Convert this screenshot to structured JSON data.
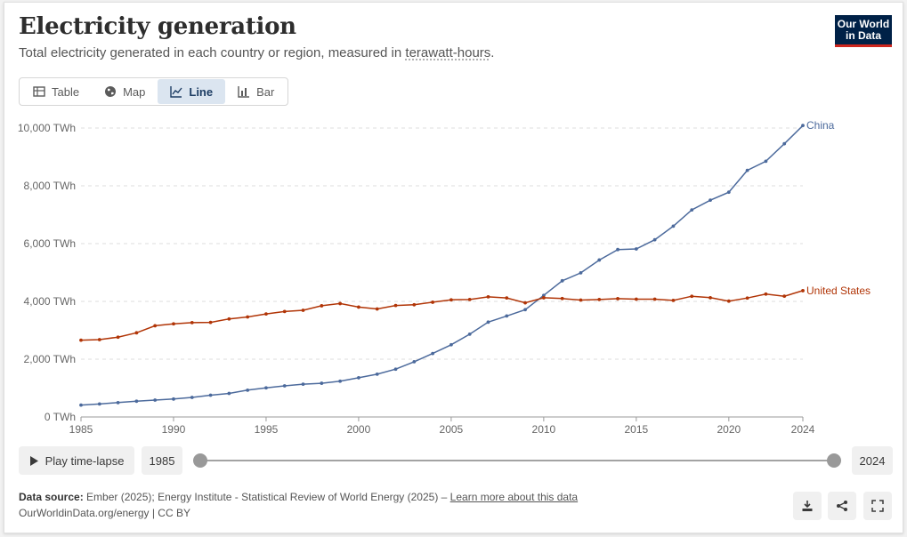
{
  "header": {
    "title": "Electricity generation",
    "subtitle_prefix": "Total electricity generated in each country or region, measured in ",
    "subtitle_unit": "terawatt-hours",
    "subtitle_suffix": ".",
    "logo_line1": "Our World",
    "logo_line2": "in Data"
  },
  "tabs": [
    {
      "label": "Table",
      "icon": "table-icon"
    },
    {
      "label": "Map",
      "icon": "globe-icon"
    },
    {
      "label": "Line",
      "icon": "line-chart-icon",
      "active": true
    },
    {
      "label": "Bar",
      "icon": "bar-chart-icon"
    }
  ],
  "chart_data": {
    "type": "line",
    "title": "Electricity generation",
    "ylabel": "TWh",
    "ylim": [
      0,
      10000
    ],
    "xlim": [
      1985,
      2024
    ],
    "y_ticks": [
      0,
      2000,
      4000,
      6000,
      8000,
      10000
    ],
    "y_tick_labels": [
      "0 TWh",
      "2,000 TWh",
      "4,000 TWh",
      "6,000 TWh",
      "8,000 TWh",
      "10,000 TWh"
    ],
    "x_ticks": [
      1985,
      1990,
      1995,
      2000,
      2005,
      2010,
      2015,
      2020,
      2024
    ],
    "x_tick_labels": [
      "1985",
      "1990",
      "1995",
      "2000",
      "2005",
      "2010",
      "2015",
      "2020",
      "2024"
    ],
    "x": [
      1985,
      1986,
      1987,
      1988,
      1989,
      1990,
      1991,
      1992,
      1993,
      1994,
      1995,
      1996,
      1997,
      1998,
      1999,
      2000,
      2001,
      2002,
      2003,
      2004,
      2005,
      2006,
      2007,
      2008,
      2009,
      2010,
      2011,
      2012,
      2013,
      2014,
      2015,
      2016,
      2017,
      2018,
      2019,
      2020,
      2021,
      2022,
      2023,
      2024
    ],
    "series": [
      {
        "name": "China",
        "color": "#4c6a9c",
        "values": [
          411,
          449,
          497,
          545,
          584,
          621,
          678,
          754,
          816,
          928,
          1007,
          1078,
          1134,
          1167,
          1239,
          1356,
          1481,
          1654,
          1911,
          2197,
          2500,
          2866,
          3282,
          3496,
          3714,
          4208,
          4713,
          4988,
          5432,
          5794,
          5815,
          6133,
          6604,
          7166,
          7503,
          7779,
          8534,
          8849,
          9456,
          10087
        ]
      },
      {
        "name": "United States",
        "color": "#b13507",
        "values": [
          2657,
          2676,
          2762,
          2913,
          3156,
          3222,
          3265,
          3273,
          3393,
          3462,
          3565,
          3649,
          3692,
          3848,
          3925,
          3802,
          3737,
          3858,
          3883,
          3971,
          4055,
          4065,
          4157,
          4119,
          3950,
          4125,
          4100,
          4047,
          4066,
          4094,
          4078,
          4077,
          4034,
          4178,
          4128,
          4009,
          4116,
          4252,
          4180,
          4371
        ]
      }
    ]
  },
  "controls": {
    "play_label": "Play time-lapse",
    "start_year": "1985",
    "end_year": "2024"
  },
  "footer": {
    "source_label": "Data source:",
    "source_text": " Ember (2025); Energy Institute - Statistical Review of World Energy (2025) – ",
    "learn_more": "Learn more about this data",
    "url_line": "OurWorldinData.org/energy | CC BY"
  },
  "actions": [
    {
      "name": "download-button",
      "icon": "download-icon"
    },
    {
      "name": "share-button",
      "icon": "share-icon"
    },
    {
      "name": "fullscreen-button",
      "icon": "fullscreen-icon"
    }
  ]
}
